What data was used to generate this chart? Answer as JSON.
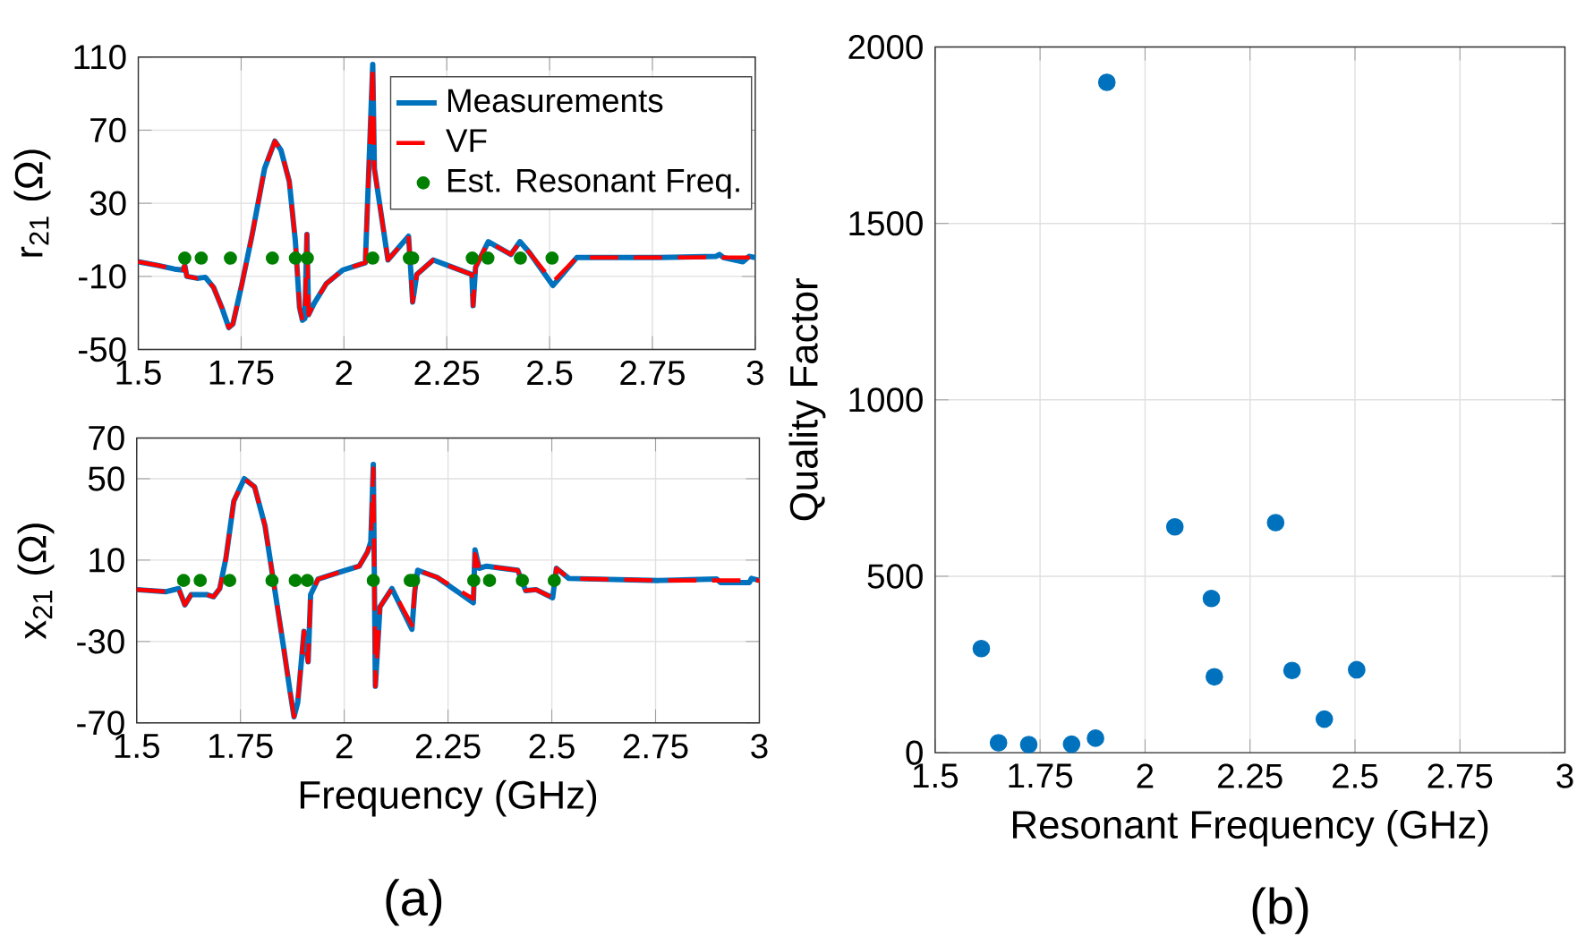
{
  "chart_data": [
    {
      "type": "line",
      "ylabel": "r$_{21}$ (Ω)",
      "xlim": [
        1.5,
        3
      ],
      "ylim": [
        -50,
        110
      ],
      "xticks": [
        1.5,
        1.75,
        2,
        2.25,
        2.5,
        2.75,
        3
      ],
      "yticks": [
        -50,
        -10,
        30,
        70,
        110
      ],
      "grid": true,
      "legend": "top right",
      "series": [
        {
          "name": "Measurements",
          "color": "#0072bd",
          "line_style": "solid",
          "x": [
            1.5,
            1.548,
            1.588,
            1.608,
            1.613,
            1.618,
            1.643,
            1.663,
            1.683,
            1.703,
            1.72,
            1.73,
            1.752,
            1.777,
            1.807,
            1.832,
            1.847,
            1.867,
            1.882,
            1.892,
            1.899,
            1.905,
            1.91,
            1.914,
            1.927,
            1.957,
            1.997,
            2.052,
            2.07,
            2.074,
            2.107,
            2.157,
            2.162,
            2.167,
            2.177,
            2.217,
            2.311,
            2.314,
            2.32,
            2.351,
            2.406,
            2.428,
            2.451,
            2.508,
            2.566,
            2.765,
            2.905,
            2.913,
            2.923,
            2.97,
            2.985,
            3.0
          ],
          "values": [
            -2,
            -4,
            -6,
            -6.5,
            -4,
            -10,
            -11,
            -10.5,
            -16,
            -27,
            -38,
            -36,
            -14,
            13,
            49,
            64,
            59,
            42,
            9,
            -27,
            -34,
            -33,
            13,
            -31,
            -25,
            -14,
            -6.5,
            -2.5,
            106,
            49,
            -1,
            12,
            -5,
            -24,
            -9,
            -1,
            -9,
            -26,
            -5,
            9,
            2,
            9,
            3,
            -15,
            0.3,
            0.3,
            1,
            2,
            0.3,
            -2,
            1,
            0.3
          ]
        },
        {
          "name": "VF",
          "color": "#ff0000",
          "line_style": "dashed",
          "x": [
            1.5,
            1.548,
            1.588,
            1.608,
            1.613,
            1.618,
            1.643,
            1.663,
            1.683,
            1.703,
            1.72,
            1.73,
            1.752,
            1.777,
            1.807,
            1.832,
            1.847,
            1.867,
            1.882,
            1.892,
            1.899,
            1.905,
            1.91,
            1.914,
            1.927,
            1.957,
            1.997,
            2.052,
            2.07,
            2.074,
            2.107,
            2.157,
            2.162,
            2.167,
            2.177,
            2.217,
            2.311,
            2.314,
            2.32,
            2.351,
            2.406,
            2.428,
            2.451,
            2.508,
            2.566,
            2.765,
            2.905,
            2.913,
            2.923,
            2.97,
            2.985,
            3.0
          ],
          "values": [
            -2,
            -4,
            -6,
            -6.5,
            -4,
            -10,
            -11,
            -10.5,
            -16,
            -27,
            -38,
            -36,
            -14,
            13,
            49,
            64,
            59,
            42,
            9,
            -27,
            -34,
            -33,
            13,
            -31,
            -25,
            -14,
            -6.5,
            -2.5,
            106,
            49,
            -1,
            12,
            -5,
            -24,
            -9,
            -1,
            -9,
            -26,
            -5,
            9,
            2,
            9,
            3,
            -13,
            0.3,
            0.3,
            0.5,
            0.5,
            0.3,
            0.3,
            0.3,
            0.3
          ]
        },
        {
          "name": "Est. Resonant Freq.",
          "type": "scatter",
          "marker": "circle",
          "color": "#008000",
          "x": [
            1.613,
            1.653,
            1.724,
            1.826,
            1.882,
            1.911,
            2.07,
            2.159,
            2.167,
            2.312,
            2.35,
            2.429,
            2.506
          ],
          "values": [
            0,
            0,
            0,
            0,
            0,
            0,
            0,
            0,
            0,
            0,
            0,
            0,
            0
          ]
        }
      ]
    },
    {
      "type": "line",
      "xlabel": "Frequency (GHz)",
      "ylabel": "x$_{21}$ (Ω)",
      "xlim": [
        1.5,
        3
      ],
      "ylim": [
        -70,
        70
      ],
      "xticks": [
        1.5,
        1.75,
        2,
        2.25,
        2.5,
        2.75,
        3
      ],
      "yticks": [
        -70,
        -30,
        10,
        50,
        70
      ],
      "grid": true,
      "annotations": [
        "(a)"
      ],
      "series": [
        {
          "color": "#0072bd",
          "line_style": "solid",
          "x": [
            1.5,
            1.571,
            1.601,
            1.616,
            1.631,
            1.67,
            1.685,
            1.7,
            1.715,
            1.734,
            1.759,
            1.784,
            1.809,
            1.854,
            1.869,
            1.879,
            1.888,
            1.903,
            1.913,
            1.919,
            1.937,
            1.987,
            2.036,
            2.056,
            2.064,
            2.07,
            2.075,
            2.086,
            2.115,
            2.163,
            2.17,
            2.177,
            2.224,
            2.311,
            2.315,
            2.325,
            2.343,
            2.418,
            2.437,
            2.462,
            2.502,
            2.511,
            2.541,
            2.758,
            2.897,
            2.906,
            2.976,
            2.981,
            3.0
          ],
          "values": [
            -4.5,
            -5.5,
            -4,
            -12,
            -7,
            -7,
            -8,
            -4,
            11,
            39,
            50,
            46,
            27,
            -33,
            -54,
            -67,
            -60,
            -25,
            -40,
            -7,
            0.7,
            4,
            7,
            14,
            19,
            57,
            -52,
            -13,
            -4,
            -24,
            -5,
            5,
            1.5,
            -11,
            15,
            6,
            7,
            5,
            -5,
            -4.5,
            -8.5,
            6,
            1,
            0,
            0.7,
            -1,
            -1,
            1,
            0
          ]
        },
        {
          "color": "#ff0000",
          "line_style": "dashed",
          "x": [
            1.5,
            1.571,
            1.601,
            1.616,
            1.631,
            1.67,
            1.685,
            1.7,
            1.715,
            1.734,
            1.759,
            1.784,
            1.809,
            1.854,
            1.869,
            1.879,
            1.888,
            1.903,
            1.913,
            1.919,
            1.937,
            1.987,
            2.036,
            2.056,
            2.064,
            2.07,
            2.075,
            2.086,
            2.115,
            2.163,
            2.17,
            2.177,
            2.224,
            2.311,
            2.315,
            2.325,
            2.343,
            2.418,
            2.437,
            2.462,
            2.502,
            2.511,
            2.541,
            2.758,
            2.897,
            2.906,
            2.976,
            2.981,
            3.0
          ],
          "values": [
            -4.5,
            -5.5,
            -4,
            -12,
            -7,
            -7,
            -8,
            -4,
            11,
            39,
            50,
            46,
            27,
            -33,
            -54,
            -67,
            -60,
            -25,
            -40,
            -7,
            0.7,
            4,
            7,
            14,
            19,
            55,
            -52,
            -13,
            -4,
            -22,
            -5,
            5,
            1.5,
            -9,
            13,
            6,
            7,
            5,
            -5,
            -4.5,
            -8.5,
            6,
            1,
            0,
            0,
            0,
            0,
            0,
            0
          ]
        },
        {
          "type": "scatter",
          "marker": "circle",
          "color": "#008000",
          "x": [
            1.613,
            1.653,
            1.724,
            1.826,
            1.882,
            1.911,
            2.07,
            2.159,
            2.167,
            2.312,
            2.35,
            2.429,
            2.506
          ],
          "values": [
            0,
            0,
            0,
            0,
            0,
            0,
            0,
            0,
            0,
            0,
            0,
            0,
            0
          ]
        }
      ]
    },
    {
      "type": "scatter",
      "xlabel": "Resonant Frequency (GHz)",
      "ylabel": "Quality Factor",
      "xlim": [
        1.5,
        3
      ],
      "ylim": [
        0,
        2000
      ],
      "xticks": [
        1.5,
        1.75,
        2,
        2.25,
        2.5,
        2.75,
        3
      ],
      "yticks": [
        0,
        500,
        1000,
        1500,
        2000
      ],
      "grid": true,
      "marker": "circle",
      "color": "#0072bd",
      "annotations": [
        "(b)"
      ],
      "x": [
        1.61,
        1.651,
        1.723,
        1.825,
        1.882,
        1.909,
        2.071,
        2.158,
        2.165,
        2.311,
        2.35,
        2.427,
        2.504
      ],
      "values": [
        295,
        28,
        23,
        24,
        41,
        1900,
        640,
        437,
        215,
        652,
        233,
        95,
        235
      ]
    }
  ]
}
